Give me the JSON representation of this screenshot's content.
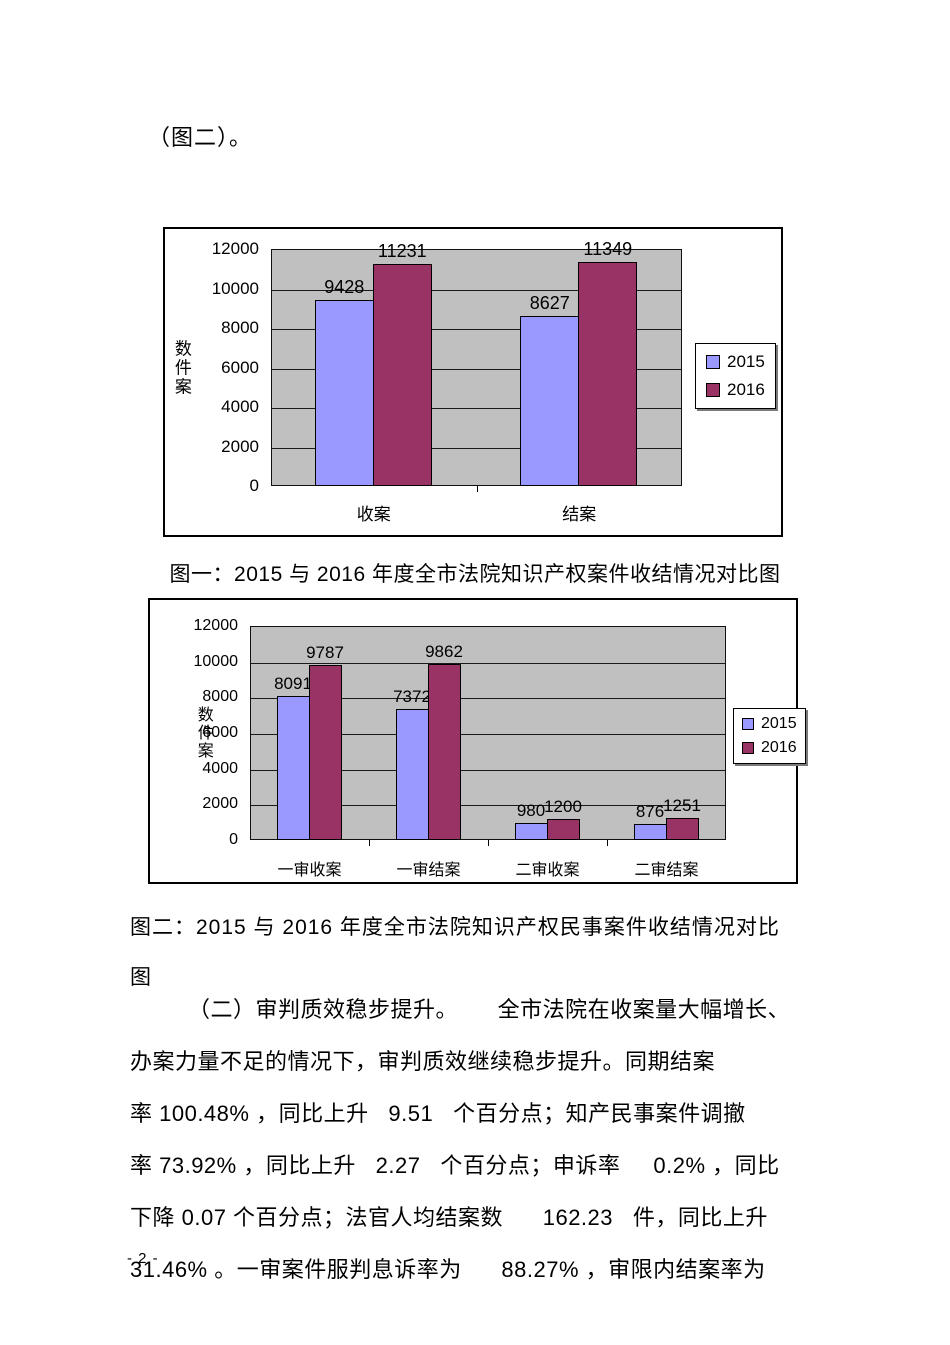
{
  "page": {
    "top_text": "（图二）。",
    "page_number": "- 2 -"
  },
  "captions": {
    "figure1": "图一：2015 与 2016 年度全市法院知识产权案件收结情况对比图",
    "figure2_line1": "图二：2015 与 2016 年度全市法院知识产权民事案件收结情况对比",
    "figure2_line2": "图"
  },
  "paragraph": {
    "lines": [
      "（二）审判质效稳步提升。      全市法院在收案量大幅增长、",
      "办案力量不足的情况下，审判质效继续稳步提升。同期结案",
      "率 100.48% ，同比上升   9.51   个百分点；知产民事案件调撤",
      "率 73.92% ，同比上升   2.27   个百分点；申诉率     0.2% ，同比",
      "下降 0.07 个百分点；法官人均结案数      162.23   件，同比上升",
      "31.46% 。一审案件服判息诉率为      88.27% ，审限内结案率为"
    ]
  },
  "chart_data": [
    {
      "type": "bar",
      "title": "图一：2015 与 2016 年度全市法院知识产权案件收结情况对比图",
      "categories": [
        "收案",
        "结案"
      ],
      "series": [
        {
          "name": "2015",
          "color": "#9999FF",
          "values": [
            9428,
            8627
          ]
        },
        {
          "name": "2016",
          "color": "#993366",
          "values": [
            11231,
            11349
          ]
        }
      ],
      "ylabel": "数件案",
      "xlabel": "",
      "ylim": [
        0,
        12000
      ],
      "ytick_step": 2000,
      "yticks": [
        "0",
        "2000",
        "4000",
        "6000",
        "8000",
        "10000",
        "12000"
      ],
      "grid": true,
      "plot_bg": "#C0C0C0",
      "legend_position": "right",
      "legend_labels": [
        "2015",
        "2016"
      ]
    },
    {
      "type": "bar",
      "title": "图二：2015 与 2016 年度全市法院知识产权民事案件收结情况对比图",
      "categories": [
        "一审收案",
        "一审结案",
        "二审收案",
        "二审结案"
      ],
      "series": [
        {
          "name": "2015",
          "color": "#9999FF",
          "values": [
            8091,
            7372,
            980,
            876
          ]
        },
        {
          "name": "2016",
          "color": "#993366",
          "values": [
            9787,
            9862,
            1200,
            1251
          ]
        }
      ],
      "ylabel": "数件案",
      "xlabel": "",
      "ylim": [
        0,
        12000
      ],
      "ytick_step": 2000,
      "yticks": [
        "0",
        "2000",
        "4000",
        "6000",
        "8000",
        "10000",
        "12000"
      ],
      "grid": true,
      "plot_bg": "#C0C0C0",
      "legend_position": "right",
      "legend_labels": [
        "2015",
        "2016"
      ]
    }
  ]
}
